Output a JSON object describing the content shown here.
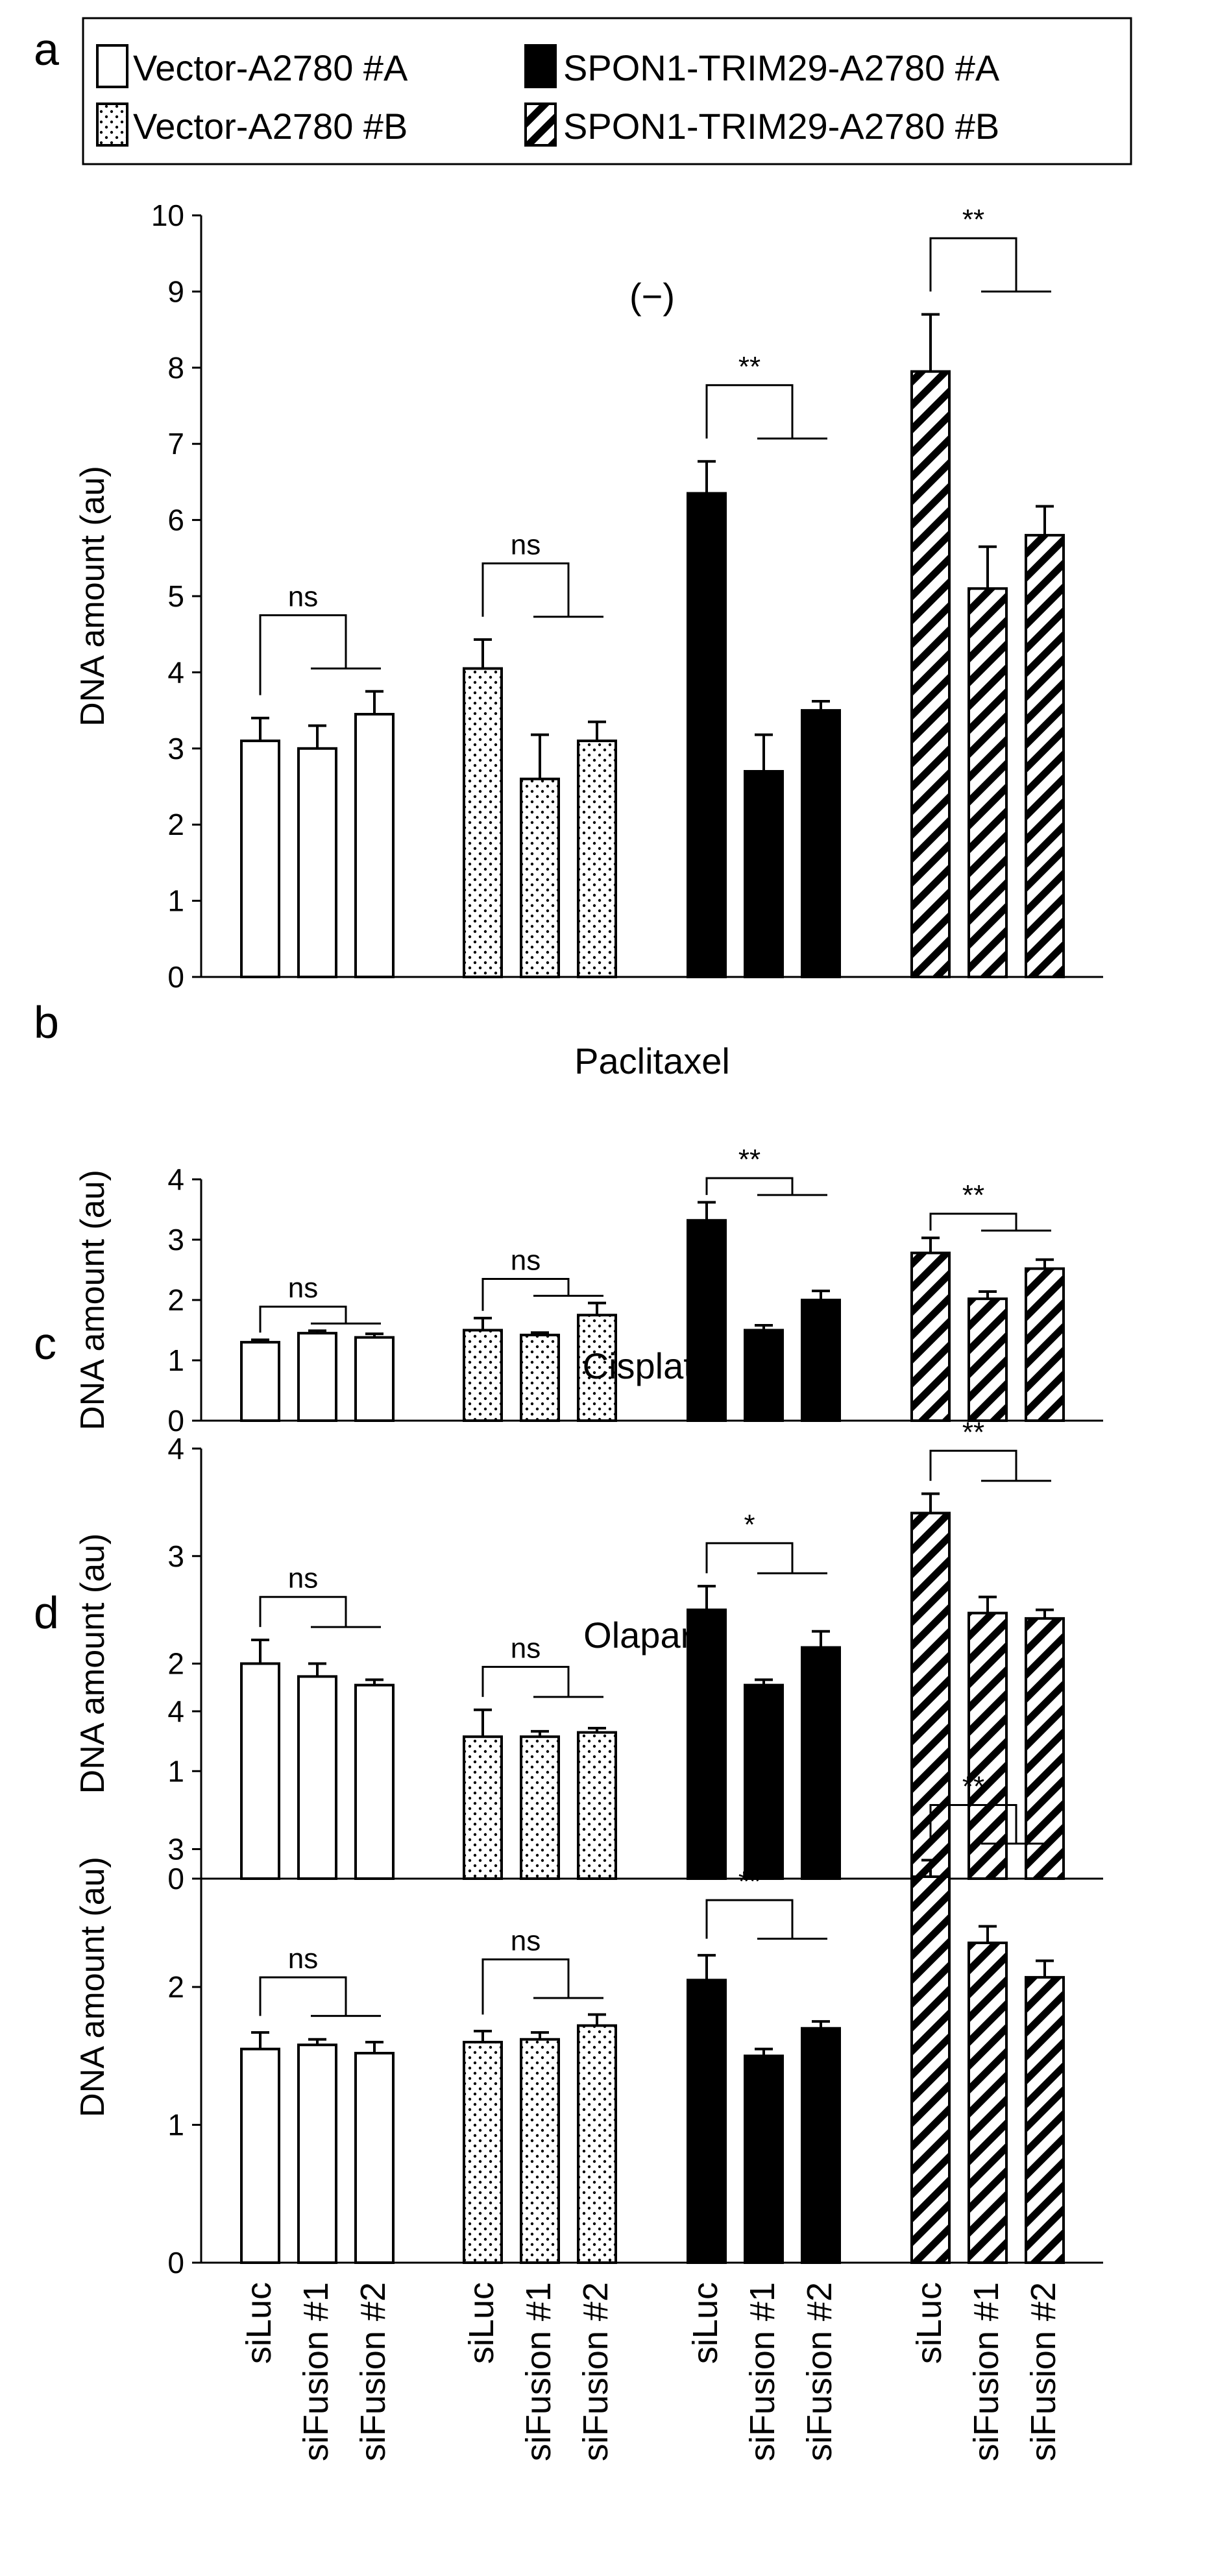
{
  "figure": {
    "legend": {
      "entries": [
        {
          "label": "Vector-A2780 #A",
          "pattern": "open"
        },
        {
          "label": "Vector-A2780 #B",
          "pattern": "dotted"
        },
        {
          "label": "SPON1-TRIM29-A2780 #A",
          "pattern": "solid"
        },
        {
          "label": "SPON1-TRIM29-A2780 #B",
          "pattern": "hatched"
        }
      ]
    },
    "x_categories": [
      "siLuc",
      "siFusion #1",
      "siFusion #2"
    ]
  },
  "chart_data": [
    {
      "type": "bar",
      "panel_label": "a",
      "title": "(−)",
      "ylabel": "DNA amount (au)",
      "ylim": [
        0,
        10
      ],
      "yticks": [
        0,
        1,
        2,
        3,
        4,
        5,
        6,
        7,
        8,
        9,
        10
      ],
      "categories": [
        "siLuc",
        "siFusion #1",
        "siFusion #2"
      ],
      "series": [
        {
          "name": "Vector-A2780 #A",
          "values": [
            3.1,
            3.0,
            3.45
          ],
          "errors": [
            0.3,
            0.3,
            0.3
          ],
          "significance": "ns"
        },
        {
          "name": "Vector-A2780 #B",
          "values": [
            4.05,
            2.6,
            3.1
          ],
          "errors": [
            0.38,
            0.58,
            0.25
          ],
          "significance": "ns"
        },
        {
          "name": "SPON1-TRIM29-A2780 #A",
          "values": [
            6.35,
            2.7,
            3.5
          ],
          "errors": [
            0.42,
            0.48,
            0.12
          ],
          "significance": "**"
        },
        {
          "name": "SPON1-TRIM29-A2780 #B",
          "values": [
            7.95,
            5.1,
            5.8
          ],
          "errors": [
            0.75,
            0.55,
            0.38
          ],
          "significance": "**"
        }
      ]
    },
    {
      "type": "bar",
      "panel_label": "b",
      "title": "Paclitaxel",
      "ylabel": "DNA amount (au)",
      "ylim": [
        0,
        4
      ],
      "yticks": [
        0,
        1,
        2,
        3,
        4
      ],
      "categories": [
        "siLuc",
        "siFusion #1",
        "siFusion #2"
      ],
      "series": [
        {
          "name": "Vector-A2780 #A",
          "values": [
            1.3,
            1.45,
            1.38
          ],
          "errors": [
            0.04,
            0.04,
            0.06
          ],
          "significance": "ns"
        },
        {
          "name": "Vector-A2780 #B",
          "values": [
            1.5,
            1.42,
            1.75
          ],
          "errors": [
            0.2,
            0.04,
            0.2
          ],
          "significance": "ns"
        },
        {
          "name": "SPON1-TRIM29-A2780 #A",
          "values": [
            3.32,
            1.5,
            2.0
          ],
          "errors": [
            0.3,
            0.08,
            0.15
          ],
          "significance": "**"
        },
        {
          "name": "SPON1-TRIM29-A2780 #B",
          "values": [
            2.78,
            2.02,
            2.52
          ],
          "errors": [
            0.25,
            0.12,
            0.15
          ],
          "significance": "**"
        }
      ]
    },
    {
      "type": "bar",
      "panel_label": "c",
      "title": "Cisplatin",
      "ylabel": "DNA amount (au)",
      "ylim": [
        0,
        4
      ],
      "yticks": [
        0,
        1,
        2,
        3,
        4
      ],
      "categories": [
        "siLuc",
        "siFusion #1",
        "siFusion #2"
      ],
      "series": [
        {
          "name": "Vector-A2780 #A",
          "values": [
            2.0,
            1.88,
            1.8
          ],
          "errors": [
            0.22,
            0.12,
            0.05
          ],
          "significance": "ns"
        },
        {
          "name": "Vector-A2780 #B",
          "values": [
            1.32,
            1.32,
            1.36
          ],
          "errors": [
            0.25,
            0.05,
            0.04
          ],
          "significance": "ns"
        },
        {
          "name": "SPON1-TRIM29-A2780 #A",
          "values": [
            2.5,
            1.8,
            2.15
          ],
          "errors": [
            0.22,
            0.05,
            0.15
          ],
          "significance": "*"
        },
        {
          "name": "SPON1-TRIM29-A2780 #B",
          "values": [
            3.4,
            2.47,
            2.42
          ],
          "errors": [
            0.18,
            0.15,
            0.08
          ],
          "significance": "**"
        }
      ]
    },
    {
      "type": "bar",
      "panel_label": "d",
      "title": "Olaparib",
      "ylabel": "DNA amount (au)",
      "ylim": [
        0,
        4
      ],
      "yticks": [
        0,
        1,
        2,
        3,
        4
      ],
      "categories": [
        "siLuc",
        "siFusion #1",
        "siFusion #2"
      ],
      "series": [
        {
          "name": "Vector-A2780 #A",
          "values": [
            1.55,
            1.58,
            1.52
          ],
          "errors": [
            0.12,
            0.04,
            0.08
          ],
          "significance": "ns"
        },
        {
          "name": "Vector-A2780 #B",
          "values": [
            1.6,
            1.62,
            1.72
          ],
          "errors": [
            0.08,
            0.05,
            0.08
          ],
          "significance": "ns"
        },
        {
          "name": "SPON1-TRIM29-A2780 #A",
          "values": [
            2.05,
            1.5,
            1.7
          ],
          "errors": [
            0.18,
            0.05,
            0.05
          ],
          "significance": "**"
        },
        {
          "name": "SPON1-TRIM29-A2780 #B",
          "values": [
            2.8,
            2.32,
            2.07
          ],
          "errors": [
            0.12,
            0.12,
            0.12
          ],
          "significance": "**"
        }
      ]
    }
  ]
}
